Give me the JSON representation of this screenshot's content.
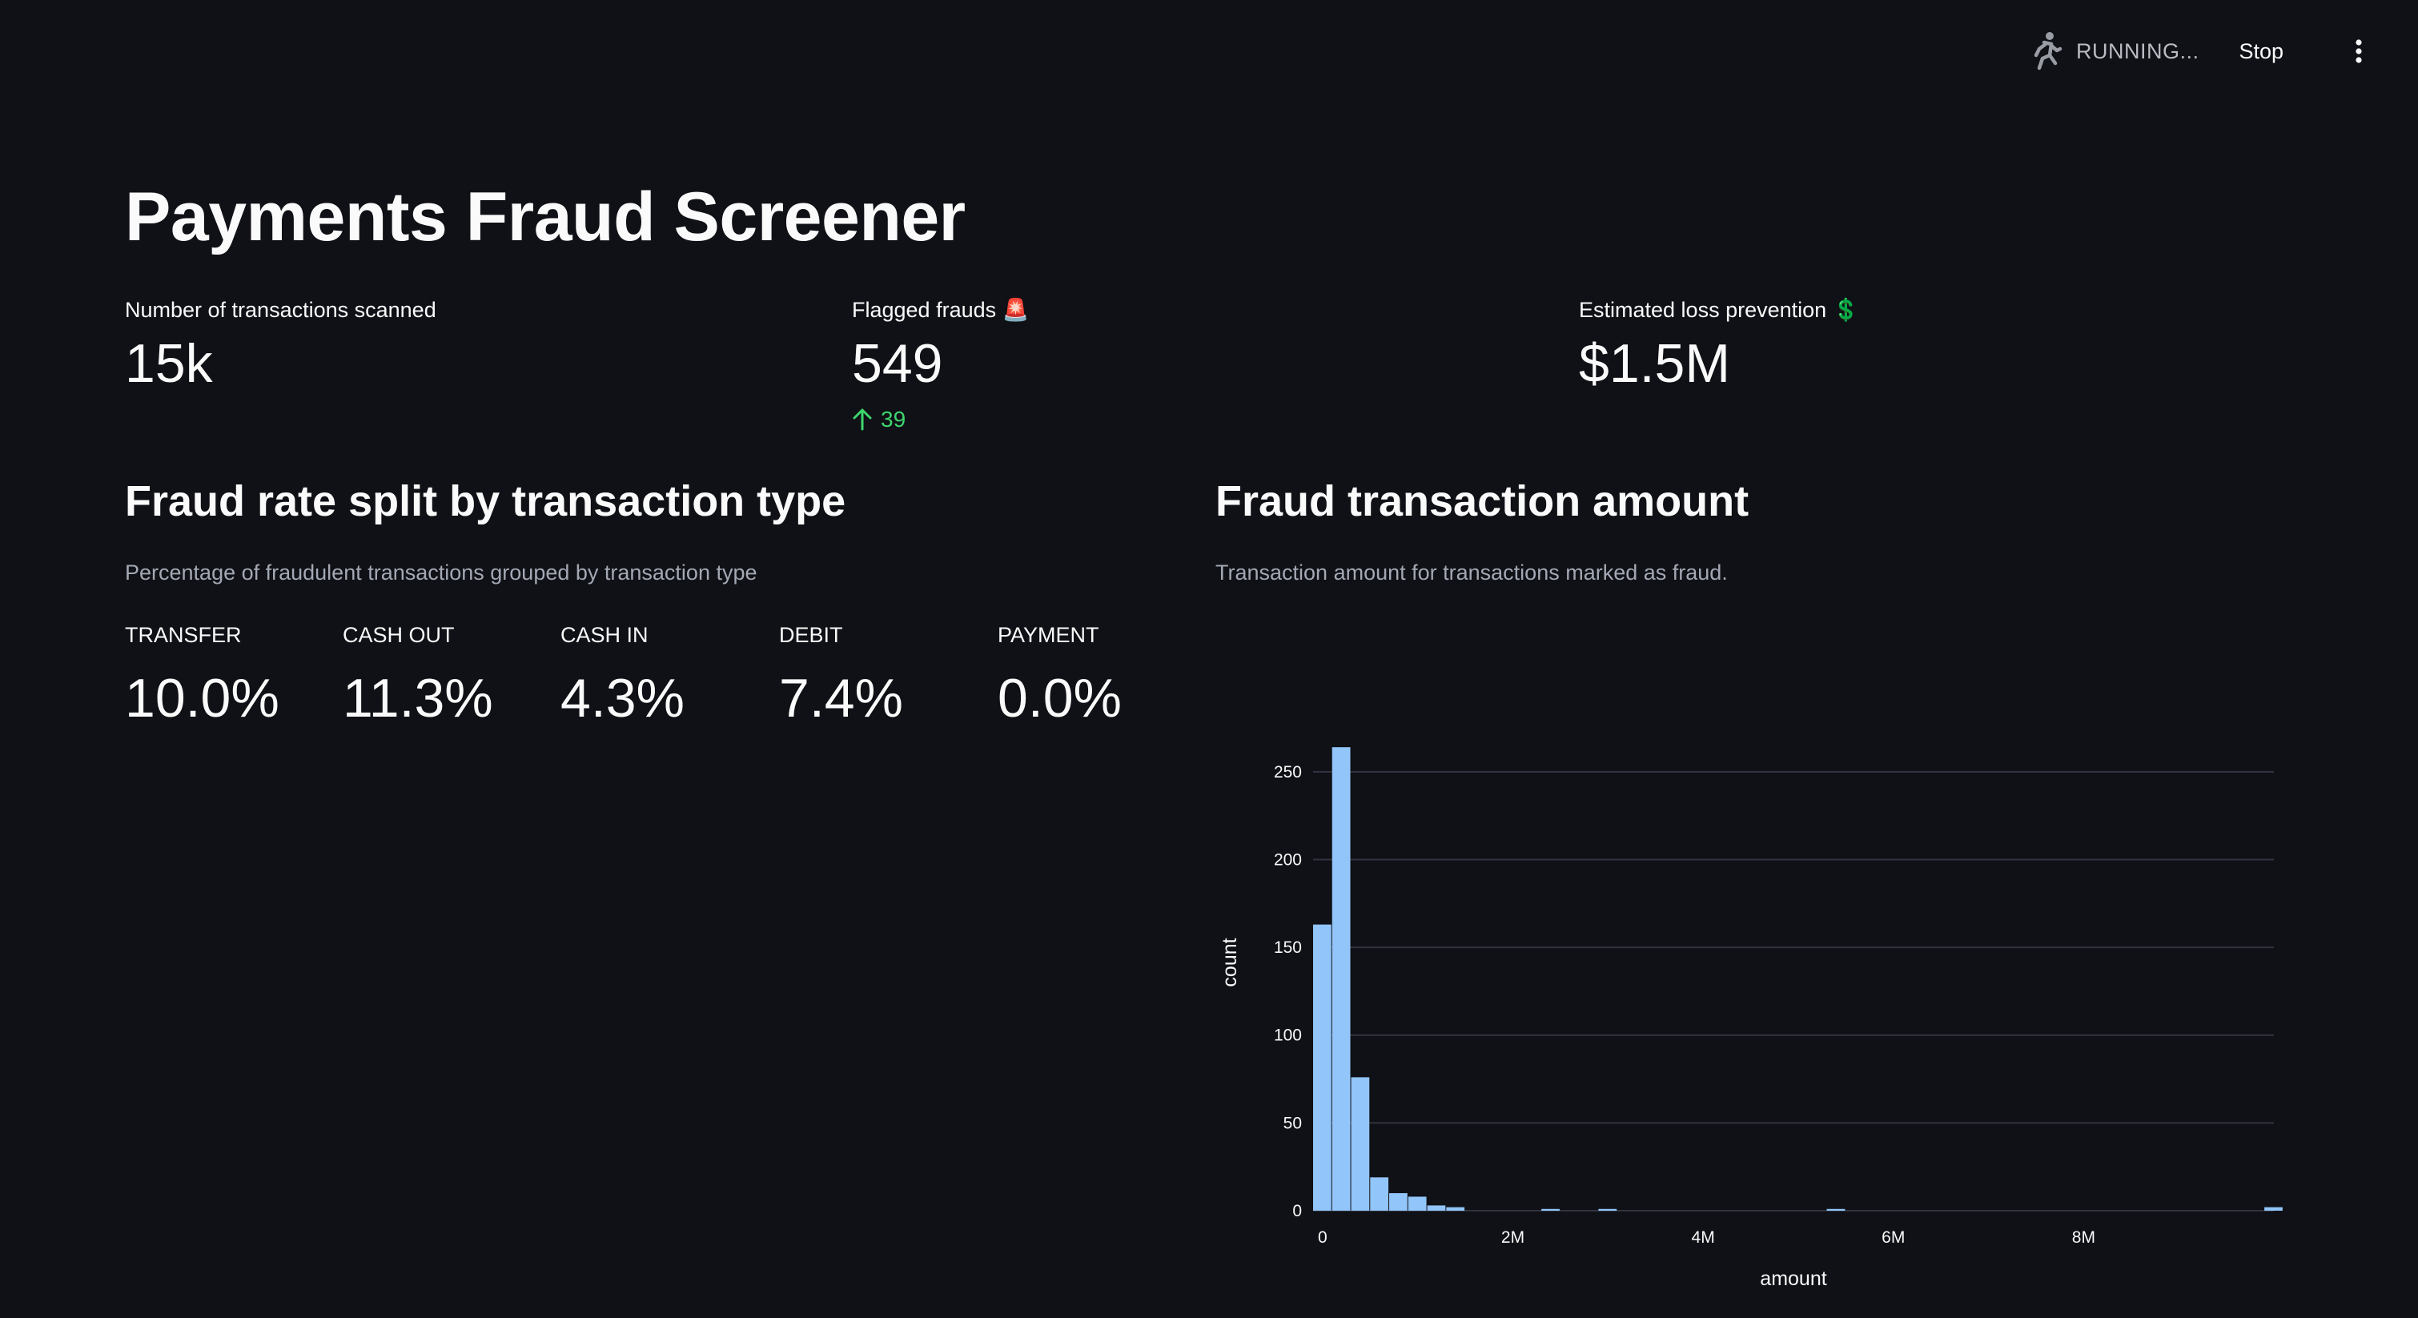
{
  "toolbar": {
    "status_text": "RUNNING...",
    "stop_label": "Stop"
  },
  "page": {
    "title": "Payments Fraud Screener"
  },
  "metrics": [
    {
      "label": "Number of transactions scanned",
      "value": "15k"
    },
    {
      "label": "Flagged frauds 🚨",
      "value": "549",
      "delta": "39",
      "delta_direction": "up"
    },
    {
      "label": "Estimated loss prevention 💲",
      "value": "$1.5M"
    }
  ],
  "fraud_rate": {
    "heading": "Fraud rate split by transaction type",
    "caption": "Percentage of fraudulent transactions grouped by transaction type",
    "items": [
      {
        "label": "TRANSFER",
        "value": "10.0%"
      },
      {
        "label": "CASH OUT",
        "value": "11.3%"
      },
      {
        "label": "CASH IN",
        "value": "4.3%"
      },
      {
        "label": "DEBIT",
        "value": "7.4%"
      },
      {
        "label": "PAYMENT",
        "value": "0.0%"
      }
    ]
  },
  "fraud_amount": {
    "heading": "Fraud transaction amount",
    "caption": "Transaction amount for transactions marked as fraud."
  },
  "colors": {
    "background": "#0f1116",
    "bar": "#92c5f9",
    "delta_positive": "#3dd56d",
    "gridline": "#31333f"
  },
  "icons": {
    "status": "running-person-icon",
    "menu": "vertical-ellipsis-icon",
    "delta": "arrow-up-icon",
    "flagged": "siren-emoji",
    "loss": "dollar-sign-emoji"
  },
  "chart_data": {
    "type": "bar",
    "title": "",
    "xlabel": "amount",
    "ylabel": "count",
    "x_ticks": [
      "0",
      "2M",
      "4M",
      "6M",
      "8M"
    ],
    "x_tick_values": [
      0,
      2000000,
      4000000,
      6000000,
      8000000
    ],
    "y_ticks": [
      "0",
      "50",
      "100",
      "150",
      "200",
      "250"
    ],
    "y_tick_values": [
      0,
      50,
      100,
      150,
      200,
      250
    ],
    "xlim": [
      -100000,
      10000000
    ],
    "ylim": [
      0,
      270
    ],
    "grid": true,
    "bin_width": 200000,
    "bins": [
      {
        "x0": -100000,
        "count": 163
      },
      {
        "x0": 100000,
        "count": 264
      },
      {
        "x0": 300000,
        "count": 76
      },
      {
        "x0": 500000,
        "count": 19
      },
      {
        "x0": 700000,
        "count": 10
      },
      {
        "x0": 900000,
        "count": 8
      },
      {
        "x0": 1100000,
        "count": 3
      },
      {
        "x0": 1300000,
        "count": 2
      },
      {
        "x0": 2300000,
        "count": 1
      },
      {
        "x0": 2900000,
        "count": 1
      },
      {
        "x0": 5300000,
        "count": 1
      },
      {
        "x0": 9900000,
        "count": 2
      }
    ]
  }
}
